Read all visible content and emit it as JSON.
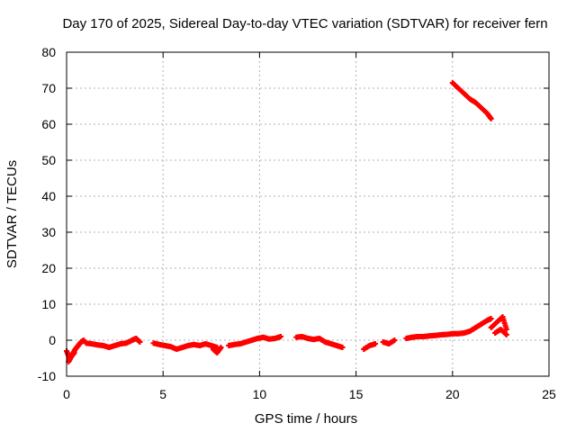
{
  "chart_data": {
    "type": "scatter",
    "title": "Day 170 of 2025, Sidereal Day-to-day VTEC variation (SDTVAR) for receiver fern",
    "xlabel": "GPS time / hours",
    "ylabel": "SDTVAR / TECUs",
    "xlim": [
      0,
      25
    ],
    "ylim": [
      -10,
      80
    ],
    "xticks": [
      0,
      5,
      10,
      15,
      20,
      25
    ],
    "yticks": [
      -10,
      0,
      10,
      20,
      30,
      40,
      50,
      60,
      70,
      80
    ],
    "xtick_labels": [
      "0",
      "5",
      "10",
      "15",
      "20",
      "25"
    ],
    "ytick_labels": [
      "-10",
      "0",
      "10",
      "20",
      "30",
      "40",
      "50",
      "60",
      "70",
      "80"
    ],
    "grid": true,
    "marker": "plus",
    "color": "#ff0000",
    "series": [
      {
        "name": "SDTVAR",
        "segments": [
          {
            "x": [
              0.0,
              0.15,
              0.3,
              0.45,
              0.6,
              0.75,
              0.9
            ],
            "y": [
              -3.0,
              -5.0,
              -4.0,
              -2.5,
              -1.5,
              -0.5,
              0.0
            ]
          },
          {
            "x": [
              0.1,
              0.25,
              0.4
            ],
            "y": [
              -6.0,
              -4.5,
              -3.5
            ]
          },
          {
            "x": [
              1.0,
              1.3,
              1.6,
              1.9,
              2.2,
              2.5,
              2.8,
              3.1,
              3.4,
              3.6,
              3.8
            ],
            "y": [
              -0.8,
              -1.0,
              -1.3,
              -1.5,
              -2.0,
              -1.5,
              -1.0,
              -0.8,
              0.0,
              0.5,
              -0.5
            ]
          },
          {
            "x": [
              4.5,
              4.8,
              5.1,
              5.4,
              5.7,
              6.0,
              6.3,
              6.6,
              6.9,
              7.2,
              7.5,
              7.8
            ],
            "y": [
              -0.8,
              -1.2,
              -1.5,
              -1.8,
              -2.5,
              -2.0,
              -1.5,
              -1.2,
              -1.5,
              -1.0,
              -1.5,
              -2.0
            ]
          },
          {
            "x": [
              7.6,
              7.8,
              8.0
            ],
            "y": [
              -2.5,
              -3.5,
              -2.0
            ]
          },
          {
            "x": [
              8.4,
              8.7,
              9.0,
              9.3,
              9.6,
              9.9,
              10.2,
              10.5,
              10.8,
              11.1
            ],
            "y": [
              -1.5,
              -1.2,
              -1.0,
              -0.5,
              0.0,
              0.5,
              0.8,
              0.3,
              0.5,
              1.0
            ]
          },
          {
            "x": [
              11.9,
              12.2,
              12.5,
              12.8,
              13.1,
              13.4,
              13.7,
              14.0,
              14.3
            ],
            "y": [
              0.8,
              1.0,
              0.5,
              0.2,
              0.5,
              -0.5,
              -1.0,
              -1.5,
              -2.0
            ]
          },
          {
            "x": [
              15.4,
              15.7,
              16.0
            ],
            "y": [
              -2.5,
              -1.5,
              -1.0
            ]
          },
          {
            "x": [
              16.4,
              16.7,
              17.0
            ],
            "y": [
              -0.5,
              -1.0,
              0.0
            ]
          },
          {
            "x": [
              17.6,
              17.9,
              18.2,
              18.5,
              18.8,
              19.1,
              19.4,
              19.7,
              20.0,
              20.3,
              20.6,
              20.9,
              21.2,
              21.5,
              21.8,
              22.0
            ],
            "y": [
              0.5,
              0.8,
              1.0,
              1.0,
              1.2,
              1.3,
              1.5,
              1.6,
              1.8,
              1.8,
              2.0,
              2.5,
              3.5,
              4.5,
              5.5,
              6.0
            ]
          },
          {
            "x": [
              22.0,
              22.3,
              22.6,
              22.8
            ],
            "y": [
              3.5,
              5.0,
              6.5,
              3.0
            ]
          },
          {
            "x": [
              22.2,
              22.5,
              22.8
            ],
            "y": [
              2.0,
              3.0,
              1.5
            ]
          },
          {
            "x": [
              20.0,
              20.3,
              20.6,
              20.9,
              21.2,
              21.5,
              21.8,
              22.0
            ],
            "y": [
              71.5,
              70.0,
              68.5,
              67.0,
              66.0,
              64.5,
              63.0,
              61.5
            ]
          }
        ]
      }
    ]
  }
}
